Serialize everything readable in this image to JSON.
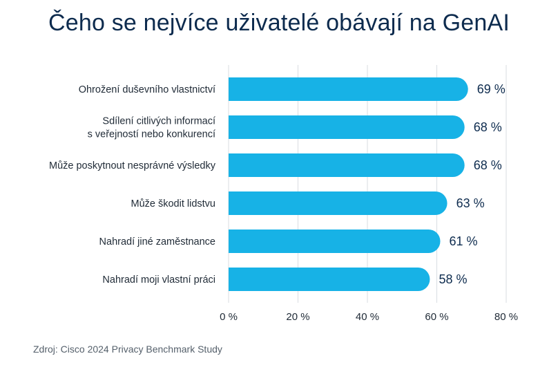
{
  "chart_data": {
    "type": "bar",
    "orientation": "horizontal",
    "title": "Čeho se nejvíce uživatelé obávají na GenAI",
    "categories": [
      [
        "Ohrožení duševního vlastnictví"
      ],
      [
        "Sdílení citlivých informací",
        "s veřejností nebo konkurencí"
      ],
      [
        "Může poskytnout nesprávné výsledky"
      ],
      [
        "Může škodit lidstvu"
      ],
      [
        "Nahradí jiné zaměstnance"
      ],
      [
        "Nahradí moji vlastní práci"
      ]
    ],
    "values": [
      69,
      68,
      68,
      63,
      61,
      58
    ],
    "value_labels": [
      "69 %",
      "68 %",
      "68 %",
      "63 %",
      "61 %",
      "58 %"
    ],
    "xlim": [
      0,
      80
    ],
    "xticks": [
      0,
      20,
      40,
      60,
      80
    ],
    "xtick_labels": [
      "0 %",
      "20 %",
      "40 %",
      "60 %",
      "80 %"
    ],
    "grid": true,
    "colors": {
      "bar": "#17b2e6",
      "title": "#0d2b4e",
      "text": "#1f2a36",
      "grid": "#d9dde2"
    }
  },
  "footer": {
    "source": "Zdroj: Cisco 2024 Privacy Benchmark Study"
  }
}
